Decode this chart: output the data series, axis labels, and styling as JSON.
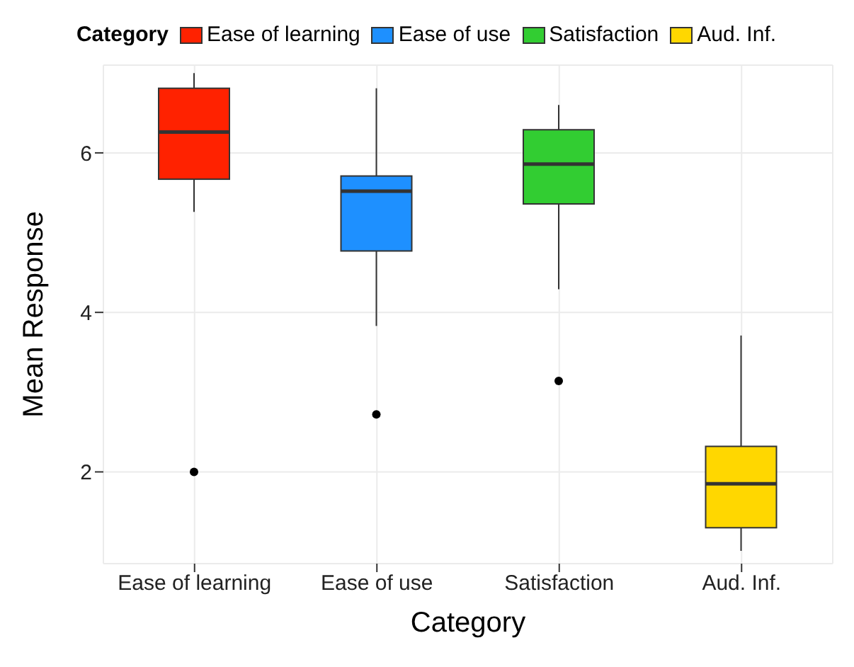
{
  "chart_data": {
    "type": "box",
    "xlabel": "Category",
    "ylabel": "Mean Response",
    "legend_title": "Category",
    "legend": "top",
    "grid": true,
    "categories": [
      "Ease of learning",
      "Ease of use",
      "Satisfaction",
      "Aud. Inf."
    ],
    "ylim": [
      0.85,
      7.1
    ],
    "yticks": [
      2,
      4,
      6
    ],
    "series": [
      {
        "name": "Ease of learning",
        "color": "#ff2200",
        "boxes": [
          {
            "low": 5.26,
            "q1": 5.67,
            "median": 6.26,
            "q3": 6.81,
            "high": 7.0,
            "outliers": [
              2.0
            ]
          },
          null,
          null,
          null
        ]
      },
      {
        "name": "Ease of use",
        "color": "#1e90ff",
        "boxes": [
          null,
          {
            "low": 3.83,
            "q1": 4.77,
            "median": 5.52,
            "q3": 5.71,
            "high": 6.81,
            "outliers": [
              2.72
            ]
          },
          null,
          null
        ]
      },
      {
        "name": "Satisfaction",
        "color": "#32cd32",
        "boxes": [
          null,
          null,
          {
            "low": 4.29,
            "q1": 5.36,
            "median": 5.86,
            "q3": 6.29,
            "high": 6.6,
            "outliers": [
              3.14
            ]
          },
          null
        ]
      },
      {
        "name": "Aud. Inf.",
        "color": "#ffd700",
        "boxes": [
          null,
          null,
          null,
          {
            "low": 1.01,
            "q1": 1.3,
            "median": 1.85,
            "q3": 2.32,
            "high": 3.71
          }
        ]
      }
    ]
  }
}
